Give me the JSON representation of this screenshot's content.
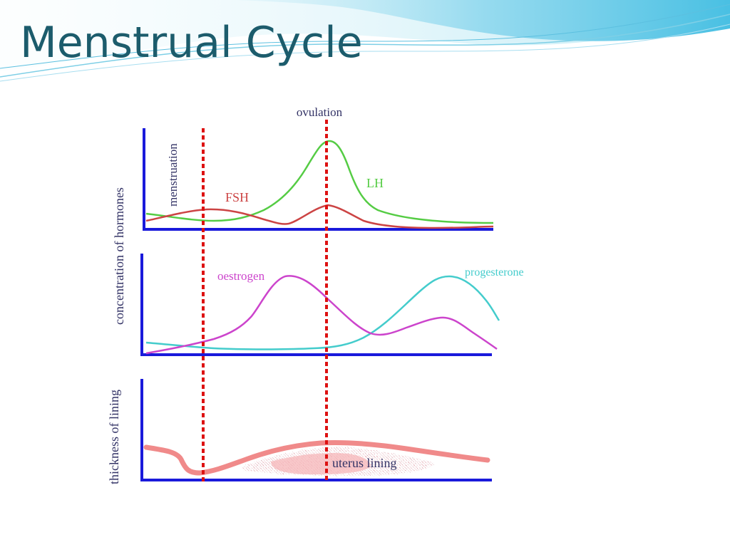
{
  "slide": {
    "title": "Menstrual Cycle"
  },
  "diagram": {
    "event_labels": {
      "ovulation": "ovulation",
      "menstruation": "menstruation"
    },
    "axis_labels": {
      "hormones": "concentration of hormones",
      "lining": "thickness of lining"
    },
    "curve_labels": {
      "fsh": "FSH",
      "lh": "LH",
      "oestrogen": "oestrogen",
      "progesterone": "progesterone",
      "uterus_lining": "uterus lining"
    },
    "colors": {
      "title": "#1c5c6c",
      "axis": "#1a1adb",
      "marker": "#dd1111",
      "fsh": "#cc4444",
      "lh": "#55cc44",
      "oestrogen": "#cc44cc",
      "progesterone": "#44cccc",
      "lining": "#f08a8a",
      "text_dark": "#333366"
    }
  }
}
